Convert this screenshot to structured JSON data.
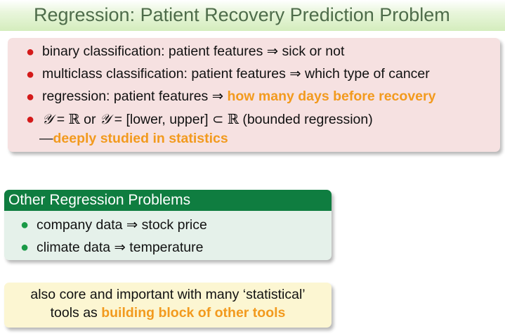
{
  "slide": {
    "title": "Regression: Patient Recovery Prediction Problem"
  },
  "block1": {
    "item1": {
      "text": "binary classification: patient features ⇒ sick or not"
    },
    "item2": {
      "text": "multiclass classification: patient features ⇒ which type of cancer"
    },
    "item3": {
      "prefix": "regression: patient features ⇒ ",
      "highlight": "how many days before recovery"
    },
    "item4": {
      "y1": "𝒴",
      "eq1": " = ",
      "R1": "ℝ",
      "or": " or ",
      "y2": "𝒴",
      "eq2": " = [lower, upper] ⊂ ",
      "R2": "ℝ",
      "suffix": " (bounded regression)",
      "dash": "—",
      "highlight": "deeply studied in statistics"
    },
    "bullet_color": "#d41a1a",
    "background_color": "#f6e1e1"
  },
  "block2": {
    "header": "Other Regression Problems",
    "items": [
      {
        "text": "company data ⇒ stock price"
      },
      {
        "text": "climate data ⇒ temperature"
      }
    ],
    "header_color": "#0f7d40",
    "bullet_color": "#1a9a47"
  },
  "block3": {
    "line1": "also core and important with many ‘statistical’",
    "line2_prefix": "tools as ",
    "line2_highlight": "building block of other tools",
    "background_color": "#fcf6d2"
  },
  "highlight_color": "#f29a1e",
  "bullet_icon": "circle-bullet-icon"
}
